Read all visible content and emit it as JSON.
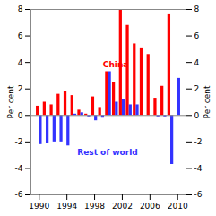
{
  "chart_data": {
    "type": "bar",
    "x": [
      1990,
      1991,
      1992,
      1993,
      1994,
      1995,
      1996,
      1997,
      1998,
      1999,
      2000,
      2001,
      2002,
      2003,
      2004,
      2005,
      2006,
      2007,
      2008,
      2009,
      2010
    ],
    "series": [
      {
        "name": "China",
        "color": "#ff0000",
        "values": [
          0.7,
          1.0,
          0.8,
          1.6,
          1.8,
          1.5,
          0.4,
          0.1,
          1.4,
          0.6,
          3.3,
          2.5,
          8.0,
          6.8,
          5.4,
          5.1,
          4.6,
          1.3,
          2.2,
          7.6,
          0.0
        ]
      },
      {
        "name": "Rest of world",
        "color": "#3333ff",
        "values": [
          -2.2,
          -2.1,
          -2.0,
          -2.0,
          -2.3,
          0.1,
          0.2,
          -0.1,
          -0.4,
          -0.2,
          3.3,
          1.0,
          1.2,
          0.8,
          0.8,
          0.0,
          0.0,
          -0.1,
          -0.1,
          -3.7,
          2.8
        ]
      }
    ],
    "xlim": [
      1988.8,
      2011.2
    ],
    "xticks": [
      1990,
      1994,
      1998,
      2002,
      2006,
      2010
    ],
    "ylim": [
      -6,
      8
    ],
    "yticks": [
      -6,
      -4,
      -2,
      0,
      2,
      4,
      6,
      8
    ],
    "y2lim": [
      -6,
      8
    ],
    "y2ticks": [
      -6,
      -4,
      -2,
      0,
      2,
      4,
      6,
      8
    ],
    "ylabel": "Per cent",
    "y2label": "Per cent",
    "annotations": [
      {
        "text": "China",
        "x": 1999.2,
        "y": 3.8,
        "color": "#ff0000"
      },
      {
        "text": "Rest of world",
        "x": 1995.5,
        "y": -2.8,
        "color": "#3333ff"
      }
    ]
  }
}
